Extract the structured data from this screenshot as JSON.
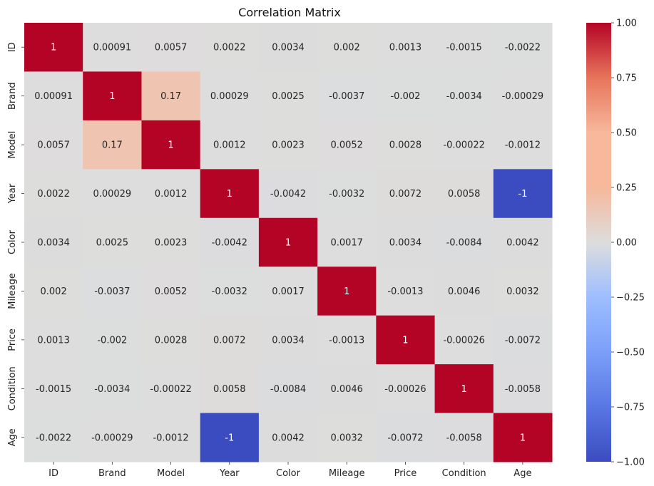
{
  "chart_data": {
    "type": "heatmap",
    "title": "Correlation Matrix",
    "colormap": "coolwarm",
    "x_labels": [
      "ID",
      "Brand",
      "Model",
      "Year",
      "Color",
      "Mileage",
      "Price",
      "Condition",
      "Age"
    ],
    "y_labels": [
      "ID",
      "Brand",
      "Model",
      "Year",
      "Color",
      "Mileage",
      "Price",
      "Condition",
      "Age"
    ],
    "values": [
      [
        1,
        0.00091,
        0.0057,
        0.0022,
        0.0034,
        0.002,
        0.0013,
        -0.0015,
        -0.0022
      ],
      [
        0.00091,
        1,
        0.17,
        0.00029,
        0.0025,
        -0.0037,
        -0.002,
        -0.0034,
        -0.00029
      ],
      [
        0.0057,
        0.17,
        1,
        0.0012,
        0.0023,
        0.0052,
        0.0028,
        -0.00022,
        -0.0012
      ],
      [
        0.0022,
        0.00029,
        0.0012,
        1,
        -0.0042,
        -0.0032,
        0.0072,
        0.0058,
        -1
      ],
      [
        0.0034,
        0.0025,
        0.0023,
        -0.0042,
        1,
        0.0017,
        0.0034,
        -0.0084,
        0.0042
      ],
      [
        0.002,
        -0.0037,
        0.0052,
        -0.0032,
        0.0017,
        1,
        -0.0013,
        0.0046,
        0.0032
      ],
      [
        0.0013,
        -0.002,
        0.0028,
        0.0072,
        0.0034,
        -0.0013,
        1,
        -0.00026,
        -0.0072
      ],
      [
        -0.0015,
        -0.0034,
        -0.00022,
        0.0058,
        -0.0084,
        0.0046,
        -0.00026,
        1,
        -0.0058
      ],
      [
        -0.0022,
        -0.00029,
        -0.0012,
        -1,
        0.0042,
        0.0032,
        -0.0072,
        -0.0058,
        1
      ]
    ],
    "annotations": [
      [
        "1",
        "0.00091",
        "0.0057",
        "0.0022",
        "0.0034",
        "0.002",
        "0.0013",
        "-0.0015",
        "-0.0022"
      ],
      [
        "0.00091",
        "1",
        "0.17",
        "0.00029",
        "0.0025",
        "-0.0037",
        "-0.002",
        "-0.0034",
        "-0.00029"
      ],
      [
        "0.0057",
        "0.17",
        "1",
        "0.0012",
        "0.0023",
        "0.0052",
        "0.0028",
        "-0.00022",
        "-0.0012"
      ],
      [
        "0.0022",
        "0.00029",
        "0.0012",
        "1",
        "-0.0042",
        "-0.0032",
        "0.0072",
        "0.0058",
        "-1"
      ],
      [
        "0.0034",
        "0.0025",
        "0.0023",
        "-0.0042",
        "1",
        "0.0017",
        "0.0034",
        "-0.0084",
        "0.0042"
      ],
      [
        "0.002",
        "-0.0037",
        "0.0052",
        "-0.0032",
        "0.0017",
        "1",
        "-0.0013",
        "0.0046",
        "0.0032"
      ],
      [
        "0.0013",
        "-0.002",
        "0.0028",
        "0.0072",
        "0.0034",
        "-0.0013",
        "1",
        "-0.00026",
        "-0.0072"
      ],
      [
        "-0.0015",
        "-0.0034",
        "-0.00022",
        "0.0058",
        "-0.0084",
        "0.0046",
        "-0.00026",
        "1",
        "-0.0058"
      ],
      [
        "-0.0022",
        "-0.00029",
        "-0.0012",
        "-1",
        "0.0042",
        "0.0032",
        "-0.0072",
        "-0.0058",
        "1"
      ]
    ],
    "vmin": -1,
    "vmax": 1,
    "colorbar": {
      "ticks": [
        1.0,
        0.75,
        0.5,
        0.25,
        0.0,
        -0.25,
        -0.5,
        -0.75,
        -1.0
      ],
      "tick_labels": [
        "1.00",
        "0.75",
        "0.50",
        "0.25",
        "0.00",
        "−0.25",
        "−0.50",
        "−0.75",
        "−1.00"
      ]
    },
    "grid": false,
    "legend": "colorbar-right"
  }
}
